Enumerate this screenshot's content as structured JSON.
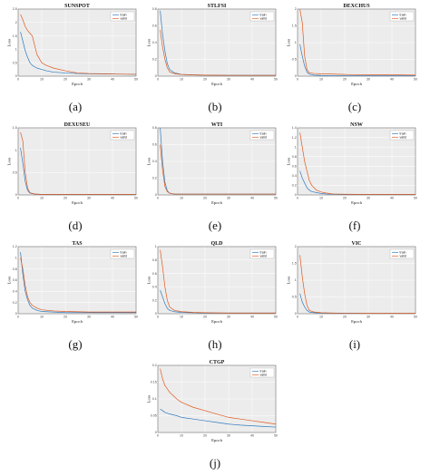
{
  "colors": {
    "train": "#2e7bbf",
    "valid": "#e05a1f",
    "plot_bg": "#ececec",
    "grid": "#ffffff"
  },
  "panels": [
    {
      "label": "(a)",
      "title": "SUNSPOT",
      "xlabel": "Epoch",
      "ylabel": "Loss",
      "xlim": [
        0,
        50
      ],
      "ylim": [
        0,
        2.5
      ],
      "yticks": [
        0,
        0.5,
        1.0,
        1.5,
        2.0,
        2.5
      ],
      "xticks": [
        0,
        10,
        20,
        30,
        40,
        50
      ]
    },
    {
      "label": "(b)",
      "title": "STLFSI",
      "xlabel": "Epoch",
      "ylabel": "Loss",
      "xlim": [
        0,
        50
      ],
      "ylim": [
        0,
        0.8
      ],
      "yticks": [
        0,
        0.2,
        0.4,
        0.6,
        0.8
      ],
      "xticks": [
        0,
        10,
        20,
        30,
        40,
        50
      ]
    },
    {
      "label": "(c)",
      "title": "DEXCHUS",
      "xlabel": "Epoch",
      "ylabel": "Loss",
      "xlim": [
        0,
        50
      ],
      "ylim": [
        0,
        2.0
      ],
      "yticks": [
        0,
        0.5,
        1.0,
        1.5,
        2.0
      ],
      "xticks": [
        0,
        10,
        20,
        30,
        40,
        50
      ]
    },
    {
      "label": "(d)",
      "title": "DEXUSEU",
      "xlabel": "Epoch",
      "ylabel": "Loss",
      "xlim": [
        0,
        50
      ],
      "ylim": [
        0,
        1.5
      ],
      "yticks": [
        0,
        0.5,
        1.0,
        1.5
      ],
      "xticks": [
        0,
        10,
        20,
        30,
        40,
        50
      ]
    },
    {
      "label": "(e)",
      "title": "WTI",
      "xlabel": "Epoch",
      "ylabel": "Loss",
      "xlim": [
        0,
        50
      ],
      "ylim": [
        0,
        0.8
      ],
      "yticks": [
        0,
        0.2,
        0.4,
        0.6,
        0.8
      ],
      "xticks": [
        0,
        10,
        20,
        30,
        40,
        50
      ]
    },
    {
      "label": "(f)",
      "title": "NSW",
      "xlabel": "Epoch",
      "ylabel": "Loss",
      "xlim": [
        0,
        50
      ],
      "ylim": [
        0,
        1.4
      ],
      "yticks": [
        0,
        0.2,
        0.4,
        0.6,
        0.8,
        1.0,
        1.2,
        1.4
      ],
      "xticks": [
        0,
        10,
        20,
        30,
        40,
        50
      ]
    },
    {
      "label": "(g)",
      "title": "TAS",
      "xlabel": "Epoch",
      "ylabel": "Loss",
      "xlim": [
        0,
        50
      ],
      "ylim": [
        0,
        1.2
      ],
      "yticks": [
        0,
        0.2,
        0.4,
        0.6,
        0.8,
        1.0,
        1.2
      ],
      "xticks": [
        0,
        10,
        20,
        30,
        40,
        50
      ]
    },
    {
      "label": "(h)",
      "title": "QLD",
      "xlabel": "Epoch",
      "ylabel": "Loss",
      "xlim": [
        0,
        50
      ],
      "ylim": [
        0,
        1.0
      ],
      "yticks": [
        0,
        0.2,
        0.4,
        0.6,
        0.8,
        1.0
      ],
      "xticks": [
        0,
        10,
        20,
        30,
        40,
        50
      ]
    },
    {
      "label": "(i)",
      "title": "VIC",
      "xlabel": "Epoch",
      "ylabel": "Loss",
      "xlim": [
        0,
        50
      ],
      "ylim": [
        0,
        2.0
      ],
      "yticks": [
        0,
        0.5,
        1.0,
        1.5,
        2.0
      ],
      "xticks": [
        0,
        10,
        20,
        30,
        40,
        50
      ]
    },
    {
      "label": "(j)",
      "title": "CTGP",
      "xlabel": "Epoch",
      "ylabel": "Loss",
      "xlim": [
        0,
        50
      ],
      "ylim": [
        0,
        0.2
      ],
      "yticks": [
        0,
        0.05,
        0.1,
        0.15,
        0.2
      ],
      "xticks": [
        0,
        10,
        20,
        30,
        40,
        50
      ]
    }
  ],
  "chart_data": [
    {
      "type": "line",
      "title": "SUNSPOT",
      "xlabel": "Epoch",
      "ylabel": "Loss",
      "xlim": [
        0,
        50
      ],
      "ylim": [
        0,
        2.5
      ],
      "grid": true,
      "legend": "top-right",
      "x": [
        1,
        2,
        3,
        4,
        5,
        6,
        8,
        10,
        12,
        15,
        20,
        25,
        30,
        40,
        50
      ],
      "series": [
        {
          "name": "train",
          "values": [
            1.65,
            1.3,
            0.95,
            0.7,
            0.5,
            0.4,
            0.3,
            0.25,
            0.2,
            0.15,
            0.12,
            0.1,
            0.09,
            0.08,
            0.07
          ]
        },
        {
          "name": "valid",
          "values": [
            2.3,
            2.1,
            1.85,
            1.7,
            1.6,
            1.5,
            0.8,
            0.5,
            0.4,
            0.3,
            0.2,
            0.12,
            0.1,
            0.08,
            0.07
          ]
        }
      ]
    },
    {
      "type": "line",
      "title": "STLFSI",
      "xlabel": "Epoch",
      "ylabel": "Loss",
      "xlim": [
        0,
        50
      ],
      "ylim": [
        0,
        0.8
      ],
      "grid": true,
      "legend": "top-right",
      "x": [
        1,
        2,
        3,
        4,
        5,
        7,
        10,
        15,
        20,
        30,
        40,
        50
      ],
      "series": [
        {
          "name": "train",
          "values": [
            0.78,
            0.5,
            0.3,
            0.15,
            0.08,
            0.04,
            0.02,
            0.015,
            0.012,
            0.01,
            0.01,
            0.01
          ]
        },
        {
          "name": "valid",
          "values": [
            0.55,
            0.35,
            0.2,
            0.1,
            0.05,
            0.03,
            0.02,
            0.015,
            0.012,
            0.01,
            0.01,
            0.01
          ]
        }
      ]
    },
    {
      "type": "line",
      "title": "DEXCHUS",
      "xlabel": "Epoch",
      "ylabel": "Loss",
      "xlim": [
        0,
        50
      ],
      "ylim": [
        0,
        2.0
      ],
      "grid": true,
      "legend": "top-right",
      "x": [
        1,
        2,
        3,
        4,
        5,
        7,
        10,
        15,
        20,
        30,
        40,
        50
      ],
      "series": [
        {
          "name": "train",
          "values": [
            0.95,
            0.6,
            0.3,
            0.12,
            0.06,
            0.03,
            0.02,
            0.015,
            0.01,
            0.01,
            0.01,
            0.01
          ]
        },
        {
          "name": "valid",
          "values": [
            2.1,
            1.6,
            0.6,
            0.2,
            0.1,
            0.08,
            0.07,
            0.06,
            0.05,
            0.04,
            0.04,
            0.03
          ]
        }
      ]
    },
    {
      "type": "line",
      "title": "DEXUSEU",
      "xlabel": "Epoch",
      "ylabel": "Loss",
      "xlim": [
        0,
        50
      ],
      "ylim": [
        0,
        1.5
      ],
      "grid": true,
      "legend": "top-right",
      "x": [
        1,
        2,
        3,
        4,
        5,
        7,
        10,
        15,
        20,
        30,
        40,
        50
      ],
      "series": [
        {
          "name": "train",
          "values": [
            1.05,
            0.7,
            0.3,
            0.1,
            0.04,
            0.02,
            0.01,
            0.01,
            0.01,
            0.01,
            0.01,
            0.01
          ]
        },
        {
          "name": "valid",
          "values": [
            1.4,
            1.2,
            0.5,
            0.15,
            0.05,
            0.02,
            0.01,
            0.01,
            0.01,
            0.01,
            0.01,
            0.01
          ]
        }
      ]
    },
    {
      "type": "line",
      "title": "WTI",
      "xlabel": "Epoch",
      "ylabel": "Loss",
      "xlim": [
        0,
        50
      ],
      "ylim": [
        0,
        0.8
      ],
      "grid": true,
      "legend": "top-right",
      "x": [
        1,
        2,
        3,
        4,
        5,
        7,
        10,
        15,
        20,
        30,
        40,
        50
      ],
      "series": [
        {
          "name": "train",
          "values": [
            0.8,
            0.4,
            0.15,
            0.05,
            0.02,
            0.01,
            0.01,
            0.01,
            0.01,
            0.01,
            0.01,
            0.01
          ]
        },
        {
          "name": "valid",
          "values": [
            0.6,
            0.3,
            0.1,
            0.04,
            0.02,
            0.01,
            0.01,
            0.01,
            0.01,
            0.01,
            0.01,
            0.01
          ]
        }
      ]
    },
    {
      "type": "line",
      "title": "NSW",
      "xlabel": "Epoch",
      "ylabel": "Loss",
      "xlim": [
        0,
        50
      ],
      "ylim": [
        0,
        1.4
      ],
      "grid": true,
      "legend": "top-right",
      "x": [
        1,
        2,
        3,
        4,
        5,
        6,
        8,
        10,
        12,
        15,
        20,
        30,
        40,
        50
      ],
      "series": [
        {
          "name": "train",
          "values": [
            0.5,
            0.35,
            0.25,
            0.15,
            0.1,
            0.07,
            0.05,
            0.03,
            0.02,
            0.015,
            0.01,
            0.01,
            0.01,
            0.01
          ]
        },
        {
          "name": "valid",
          "values": [
            1.3,
            1.0,
            0.7,
            0.5,
            0.3,
            0.2,
            0.1,
            0.06,
            0.04,
            0.02,
            0.015,
            0.01,
            0.01,
            0.01
          ]
        }
      ]
    },
    {
      "type": "line",
      "title": "TAS",
      "xlabel": "Epoch",
      "ylabel": "Loss",
      "xlim": [
        0,
        50
      ],
      "ylim": [
        0,
        1.2
      ],
      "grid": true,
      "legend": "top-right",
      "x": [
        1,
        2,
        3,
        4,
        5,
        6,
        8,
        10,
        15,
        20,
        30,
        40,
        50
      ],
      "series": [
        {
          "name": "train",
          "values": [
            1.1,
            0.7,
            0.4,
            0.25,
            0.15,
            0.1,
            0.06,
            0.04,
            0.03,
            0.02,
            0.02,
            0.02,
            0.02
          ]
        },
        {
          "name": "valid",
          "values": [
            1.0,
            0.8,
            0.5,
            0.3,
            0.2,
            0.15,
            0.1,
            0.07,
            0.05,
            0.04,
            0.03,
            0.03,
            0.03
          ]
        }
      ]
    },
    {
      "type": "line",
      "title": "QLD",
      "xlabel": "Epoch",
      "ylabel": "Loss",
      "xlim": [
        0,
        50
      ],
      "ylim": [
        0,
        1.0
      ],
      "grid": true,
      "legend": "top-right",
      "x": [
        1,
        2,
        3,
        4,
        5,
        7,
        10,
        15,
        20,
        30,
        40,
        50
      ],
      "series": [
        {
          "name": "train",
          "values": [
            0.35,
            0.25,
            0.15,
            0.08,
            0.05,
            0.03,
            0.02,
            0.015,
            0.01,
            0.01,
            0.01,
            0.01
          ]
        },
        {
          "name": "valid",
          "values": [
            0.95,
            0.7,
            0.4,
            0.2,
            0.1,
            0.05,
            0.03,
            0.02,
            0.015,
            0.01,
            0.01,
            0.01
          ]
        }
      ]
    },
    {
      "type": "line",
      "title": "VIC",
      "xlabel": "Epoch",
      "ylabel": "Loss",
      "xlim": [
        0,
        50
      ],
      "ylim": [
        0,
        2.0
      ],
      "grid": true,
      "legend": "top-right",
      "x": [
        1,
        2,
        3,
        4,
        5,
        7,
        10,
        15,
        20,
        30,
        40,
        50
      ],
      "series": [
        {
          "name": "train",
          "values": [
            0.6,
            0.35,
            0.2,
            0.1,
            0.05,
            0.03,
            0.02,
            0.015,
            0.01,
            0.01,
            0.01,
            0.01
          ]
        },
        {
          "name": "valid",
          "values": [
            1.75,
            1.1,
            0.6,
            0.25,
            0.1,
            0.05,
            0.03,
            0.02,
            0.015,
            0.01,
            0.01,
            0.01
          ]
        }
      ]
    },
    {
      "type": "line",
      "title": "CTGP",
      "xlabel": "Epoch",
      "ylabel": "Loss",
      "xlim": [
        0,
        50
      ],
      "ylim": [
        0,
        0.2
      ],
      "grid": true,
      "legend": "top-right",
      "x": [
        1,
        2,
        3,
        5,
        8,
        10,
        15,
        20,
        25,
        30,
        35,
        40,
        45,
        50
      ],
      "series": [
        {
          "name": "train",
          "values": [
            0.07,
            0.065,
            0.06,
            0.055,
            0.05,
            0.045,
            0.04,
            0.035,
            0.03,
            0.025,
            0.022,
            0.02,
            0.018,
            0.016
          ]
        },
        {
          "name": "valid",
          "values": [
            0.19,
            0.16,
            0.14,
            0.12,
            0.1,
            0.09,
            0.075,
            0.065,
            0.055,
            0.045,
            0.04,
            0.035,
            0.03,
            0.025
          ]
        }
      ]
    }
  ]
}
